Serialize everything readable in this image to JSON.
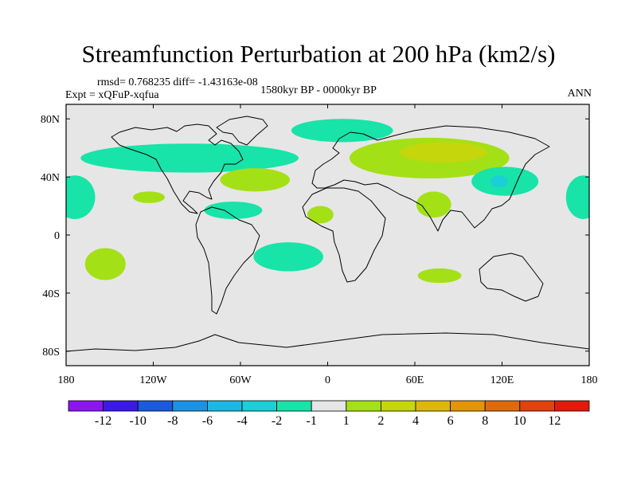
{
  "chart_data": {
    "type": "heatmap",
    "title": "Streamfunction Perturbation at 200 hPa (km2/s)",
    "stats_text": "rmsd= 0.768235 diff= -1.43163e-08",
    "experiment_text": "Expt = xQFuP-xqfua",
    "period_text": "1580kyr BP - 0000kyr BP",
    "season": "ANN",
    "xlim": [
      -180,
      180
    ],
    "ylim": [
      -90,
      90
    ],
    "x_ticks": [
      {
        "value": -180,
        "label": "180"
      },
      {
        "value": -120,
        "label": "120W"
      },
      {
        "value": -60,
        "label": "60W"
      },
      {
        "value": 0,
        "label": "0"
      },
      {
        "value": 60,
        "label": "60E"
      },
      {
        "value": 120,
        "label": "120E"
      },
      {
        "value": 180,
        "label": "180"
      }
    ],
    "y_ticks": [
      {
        "value": 80,
        "label": "80N"
      },
      {
        "value": 40,
        "label": "40N"
      },
      {
        "value": 0,
        "label": "0"
      },
      {
        "value": -40,
        "label": "40S"
      },
      {
        "value": -80,
        "label": "80S"
      }
    ],
    "colorbar": {
      "labels": [
        "-12",
        "-10",
        "-8",
        "-6",
        "-4",
        "-2",
        "-1",
        "1",
        "2",
        "4",
        "6",
        "8",
        "10",
        "12"
      ],
      "colors": [
        "#8d16f0",
        "#3b1ae6",
        "#1b5ae0",
        "#1a93e6",
        "#1bb8e6",
        "#1acfd6",
        "#18e3a8",
        "#e6e6e6",
        "#a4e016",
        "#c6d60c",
        "#ddb80a",
        "#e59408",
        "#e06a0a",
        "#e2420c",
        "#e21a0c"
      ]
    },
    "regions": [
      {
        "name": "north-pacific-east-positive",
        "level": "-2 to -1",
        "lon": -174,
        "lat": 26,
        "rlon": 14,
        "rlat": 15,
        "color": "#18e3a8"
      },
      {
        "name": "north-pacific-west-positive",
        "level": "-2 to -1",
        "lon": 176,
        "lat": 26,
        "rlon": 12,
        "rlat": 15,
        "color": "#18e3a8"
      },
      {
        "name": "north-america-band",
        "level": "-2 to -1",
        "lon": -95,
        "lat": 53,
        "rlon": 75,
        "rlat": 10,
        "color": "#18e3a8"
      },
      {
        "name": "north-atlantic-band",
        "level": "-2 to -1",
        "lon": 10,
        "lat": 72,
        "rlon": 35,
        "rlat": 8,
        "color": "#18e3a8"
      },
      {
        "name": "eurasia-outer",
        "level": "1 to 2",
        "lon": 70,
        "lat": 53,
        "rlon": 55,
        "rlat": 14,
        "color": "#a4e016"
      },
      {
        "name": "eurasia-core",
        "level": "2 to 4",
        "lon": 80,
        "lat": 57,
        "rlon": 30,
        "rlat": 7,
        "color": "#c6d60c"
      },
      {
        "name": "east-asia-negative",
        "level": "-2 to -1",
        "lon": 122,
        "lat": 37,
        "rlon": 23,
        "rlat": 10,
        "color": "#18e3a8"
      },
      {
        "name": "east-asia-core",
        "level": "-4 to -2",
        "lon": 118,
        "lat": 37,
        "rlon": 6,
        "rlat": 4,
        "color": "#1acfd6"
      },
      {
        "name": "north-atlantic-subtropic",
        "level": "1 to 2",
        "lon": -50,
        "lat": 38,
        "rlon": 24,
        "rlat": 8,
        "color": "#a4e016"
      },
      {
        "name": "eastern-pacific-north",
        "level": "1 to 2",
        "lon": -123,
        "lat": 26,
        "rlon": 11,
        "rlat": 4,
        "color": "#a4e016"
      },
      {
        "name": "caribbean",
        "level": "-2 to -1",
        "lon": -65,
        "lat": 17,
        "rlon": 20,
        "rlat": 6,
        "color": "#18e3a8"
      },
      {
        "name": "west-africa",
        "level": "1 to 2",
        "lon": -5,
        "lat": 14,
        "rlon": 9,
        "rlat": 6,
        "color": "#a4e016"
      },
      {
        "name": "arabian-sea",
        "level": "1 to 2",
        "lon": 73,
        "lat": 21,
        "rlon": 12,
        "rlat": 9,
        "color": "#a4e016"
      },
      {
        "name": "south-pacific",
        "level": "1 to 2",
        "lon": -153,
        "lat": -20,
        "rlon": 14,
        "rlat": 11,
        "color": "#a4e016"
      },
      {
        "name": "south-atlantic",
        "level": "-2 to -1",
        "lon": -27,
        "lat": -15,
        "rlon": 24,
        "rlat": 10,
        "color": "#18e3a8"
      },
      {
        "name": "south-indian-ocean",
        "level": "1 to 2",
        "lon": 77,
        "lat": -28,
        "rlon": 15,
        "rlat": 5,
        "color": "#a4e016"
      }
    ]
  }
}
